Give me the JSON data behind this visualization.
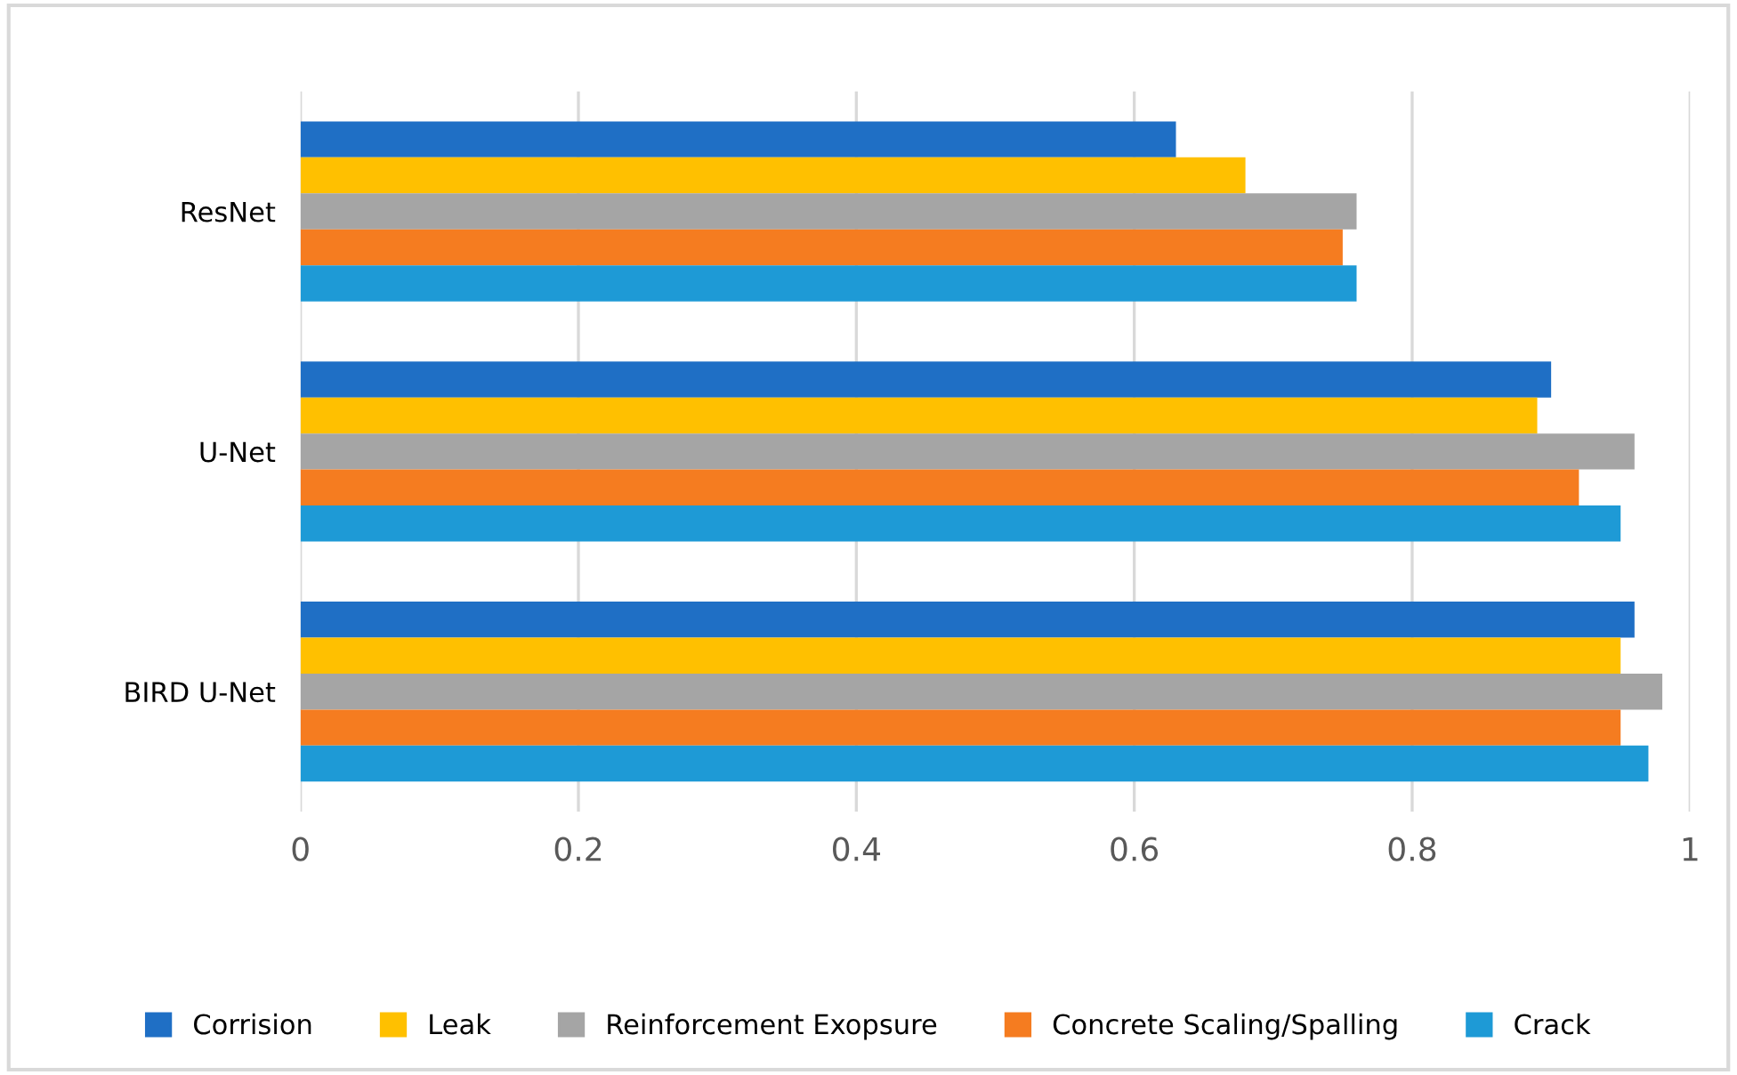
{
  "chart_data": {
    "type": "bar",
    "orientation": "horizontal",
    "categories": [
      "ResNet",
      "U-Net",
      "BIRD U-Net"
    ],
    "series": [
      {
        "name": "Corrision",
        "color": "#1f6fc5",
        "values": [
          0.63,
          0.9,
          0.96
        ]
      },
      {
        "name": "Leak",
        "color": "#ffc000",
        "values": [
          0.68,
          0.89,
          0.95
        ]
      },
      {
        "name": "Reinforcement Exopsure",
        "color": "#a5a5a5",
        "values": [
          0.76,
          0.96,
          0.98
        ]
      },
      {
        "name": "Concrete Scaling/Spalling",
        "color": "#f57c20",
        "values": [
          0.75,
          0.92,
          0.95
        ]
      },
      {
        "name": "Crack",
        "color": "#1e9ad6",
        "values": [
          0.76,
          0.95,
          0.97
        ]
      }
    ],
    "xlim": [
      0,
      1
    ],
    "xticks": [
      0,
      0.2,
      0.4,
      0.6,
      0.8,
      1
    ],
    "grid": "x",
    "legend": "bottom"
  }
}
